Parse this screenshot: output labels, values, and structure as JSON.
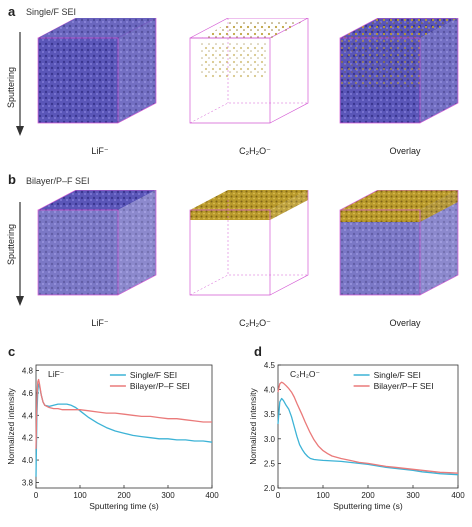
{
  "panel_a": {
    "letter": "a",
    "title": "Single/F SEI",
    "axis_label": "Sputtering",
    "cube_labels": [
      "LiF⁻",
      "C₂H₂O⁻",
      "Overlay"
    ]
  },
  "panel_b": {
    "letter": "b",
    "title": "Bilayer/P–F SEI",
    "axis_label": "Sputtering",
    "cube_labels": [
      "LiF⁻",
      "C₂H₂O⁻",
      "Overlay"
    ]
  },
  "colors": {
    "lif": "#5a56b8",
    "c2h2o": "#b99a2c",
    "cube_edge": "#d45ad4",
    "series_single": "#3db3d6",
    "series_bilayer": "#ea7a7a"
  },
  "chart_data": [
    {
      "panel": "c",
      "type": "line",
      "annotation": "LiF⁻",
      "xlabel": "Sputtering time (s)",
      "ylabel": "Normalized intensity",
      "xlim": [
        0,
        400
      ],
      "ylim": [
        3.75,
        4.85
      ],
      "xticks": [
        0,
        100,
        200,
        300,
        400
      ],
      "yticks": [
        3.8,
        4.0,
        4.2,
        4.4,
        4.6,
        4.8
      ],
      "legend_position": "top-right",
      "series": [
        {
          "name": "Single/F SEI",
          "x": [
            0,
            2,
            4,
            6,
            8,
            12,
            16,
            20,
            30,
            40,
            50,
            60,
            70,
            80,
            90,
            100,
            120,
            140,
            160,
            180,
            200,
            220,
            240,
            260,
            280,
            300,
            320,
            340,
            360,
            380,
            400
          ],
          "y": [
            3.85,
            4.4,
            4.62,
            4.68,
            4.66,
            4.58,
            4.52,
            4.49,
            4.48,
            4.49,
            4.5,
            4.5,
            4.5,
            4.49,
            4.47,
            4.44,
            4.38,
            4.33,
            4.29,
            4.26,
            4.24,
            4.22,
            4.21,
            4.2,
            4.19,
            4.19,
            4.18,
            4.18,
            4.17,
            4.17,
            4.16
          ]
        },
        {
          "name": "Bilayer/P–F SEI",
          "x": [
            0,
            2,
            4,
            6,
            8,
            12,
            16,
            20,
            30,
            40,
            50,
            60,
            80,
            100,
            120,
            140,
            160,
            180,
            200,
            220,
            240,
            260,
            280,
            300,
            320,
            340,
            360,
            380,
            400
          ],
          "y": [
            4.1,
            4.55,
            4.7,
            4.72,
            4.68,
            4.58,
            4.52,
            4.49,
            4.47,
            4.46,
            4.46,
            4.45,
            4.45,
            4.45,
            4.44,
            4.43,
            4.42,
            4.42,
            4.41,
            4.4,
            4.39,
            4.39,
            4.38,
            4.37,
            4.37,
            4.36,
            4.35,
            4.34,
            4.34
          ]
        }
      ]
    },
    {
      "panel": "d",
      "type": "line",
      "annotation": "C₂H₂O⁻",
      "xlabel": "Sputtering time (s)",
      "ylabel": "Normalized intensity",
      "xlim": [
        0,
        400
      ],
      "ylim": [
        2.0,
        4.5
      ],
      "xticks": [
        0,
        100,
        200,
        300,
        400
      ],
      "yticks": [
        2.0,
        2.5,
        3.0,
        3.5,
        4.0,
        4.5
      ],
      "legend_position": "top-right",
      "series": [
        {
          "name": "Single/F SEI",
          "x": [
            0,
            4,
            8,
            12,
            18,
            24,
            30,
            36,
            42,
            48,
            54,
            60,
            66,
            72,
            80,
            90,
            100,
            120,
            140,
            160,
            180,
            200,
            220,
            240,
            260,
            280,
            300,
            320,
            340,
            360,
            380,
            400
          ],
          "y": [
            3.3,
            3.75,
            3.82,
            3.78,
            3.68,
            3.6,
            3.45,
            3.25,
            3.05,
            2.88,
            2.78,
            2.7,
            2.64,
            2.6,
            2.58,
            2.57,
            2.56,
            2.55,
            2.54,
            2.52,
            2.5,
            2.48,
            2.45,
            2.42,
            2.4,
            2.38,
            2.36,
            2.33,
            2.31,
            2.29,
            2.28,
            2.27
          ]
        },
        {
          "name": "Bilayer/P–F SEI",
          "x": [
            0,
            4,
            8,
            12,
            18,
            24,
            30,
            36,
            42,
            48,
            54,
            60,
            70,
            80,
            90,
            100,
            110,
            120,
            140,
            160,
            180,
            200,
            220,
            240,
            260,
            280,
            300,
            320,
            340,
            360,
            380,
            400
          ],
          "y": [
            3.95,
            4.12,
            4.15,
            4.13,
            4.08,
            4.02,
            3.95,
            3.85,
            3.72,
            3.6,
            3.48,
            3.35,
            3.15,
            2.98,
            2.85,
            2.76,
            2.7,
            2.65,
            2.6,
            2.56,
            2.52,
            2.5,
            2.47,
            2.44,
            2.42,
            2.4,
            2.38,
            2.36,
            2.34,
            2.32,
            2.31,
            2.3
          ]
        }
      ]
    }
  ]
}
